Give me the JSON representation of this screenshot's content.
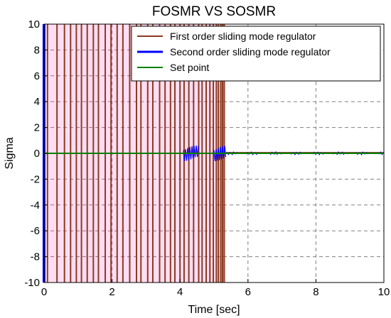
{
  "chart_data": {
    "type": "line",
    "title": "FOSMR VS SOSMR",
    "xlabel": "Time [sec]",
    "ylabel": "Sigma",
    "xlim": [
      0,
      10
    ],
    "ylim": [
      -10,
      10
    ],
    "xticks": [
      "0",
      "2",
      "4",
      "6",
      "8",
      "10"
    ],
    "yticks": [
      "10",
      "8",
      "6",
      "4",
      "2",
      "0",
      "-2",
      "-4",
      "-6",
      "-8",
      "-10"
    ],
    "grid": true,
    "legend_position": "top-right",
    "series": [
      {
        "name": "First order sliding mode regulator",
        "color": "#8b3a1f",
        "description_values": {
          "switching_times": [
            0.1,
            0.38,
            0.6,
            0.78,
            0.95,
            1.1,
            1.27,
            1.45,
            1.6,
            1.8,
            1.97,
            2.15,
            2.32,
            2.52,
            2.72,
            2.85,
            3.05,
            3.2,
            3.4,
            3.56,
            3.72,
            3.85,
            4.0,
            4.12,
            4.26,
            4.4,
            4.55,
            4.65,
            4.77,
            4.88,
            4.98,
            5.07,
            5.13,
            5.2,
            5.25,
            5.3
          ],
          "amplitude": 10,
          "settle_time": 5.35,
          "steady_value": 0
        }
      },
      {
        "name": "Second order sliding mode regulator",
        "color": "#0000ff",
        "description_values": {
          "initial_spike_time": 0.02,
          "chatter_windows": [
            [
              4.1,
              4.55
            ],
            [
              5.0,
              5.35
            ]
          ],
          "chatter_amplitude": 0.6,
          "steady_value": 0
        }
      },
      {
        "name": "Set point",
        "color": "#008000",
        "values": [
          {
            "x": 0,
            "y": 0
          },
          {
            "x": 10,
            "y": 0
          }
        ]
      }
    ]
  }
}
